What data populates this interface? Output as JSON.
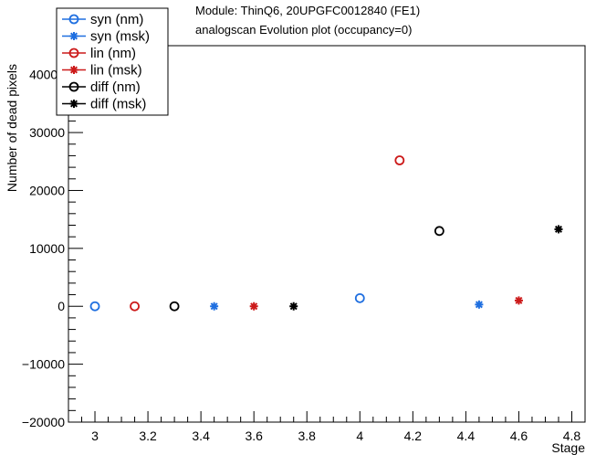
{
  "chart_data": {
    "type": "scatter",
    "title_lines": [
      "Module: ThinQ6, 20UPGFC0012840 (FE1)",
      "analogscan Evolution plot (occupancy=0)"
    ],
    "xlabel": "Stage",
    "ylabel": "Number of dead pixels",
    "xlim": [
      2.9,
      4.85
    ],
    "ylim": [
      -20000,
      45000
    ],
    "x_ticks": [
      3,
      3.2,
      3.4,
      3.6,
      3.8,
      4,
      4.2,
      4.4,
      4.6,
      4.8
    ],
    "x_tick_labels": [
      "3",
      "3.2",
      "3.4",
      "3.6",
      "3.8",
      "4",
      "4.2",
      "4.4",
      "4.6",
      "4.8"
    ],
    "y_ticks": [
      -20000,
      -10000,
      0,
      10000,
      20000,
      30000,
      40000
    ],
    "y_tick_labels": [
      "−20000",
      "−10000",
      "0",
      "10000",
      "20000",
      "30000",
      "40000"
    ],
    "grid": false,
    "legend_position": "top-left",
    "series": [
      {
        "name": "syn (nm)",
        "color": "#1f6fe0",
        "marker": "open-circle",
        "x": [
          3.0,
          4.0
        ],
        "y": [
          0,
          1400
        ]
      },
      {
        "name": "syn (msk)",
        "color": "#1f6fe0",
        "marker": "star",
        "x": [
          3.45,
          4.45
        ],
        "y": [
          0,
          300
        ]
      },
      {
        "name": "lin (nm)",
        "color": "#cc1a1a",
        "marker": "open-circle",
        "x": [
          3.15,
          4.15
        ],
        "y": [
          0,
          25200
        ]
      },
      {
        "name": "lin (msk)",
        "color": "#cc1a1a",
        "marker": "star",
        "x": [
          3.6,
          4.6
        ],
        "y": [
          0,
          1000
        ]
      },
      {
        "name": "diff (nm)",
        "color": "#000000",
        "marker": "open-circle",
        "x": [
          3.3,
          4.3
        ],
        "y": [
          0,
          13000
        ]
      },
      {
        "name": "diff (msk)",
        "color": "#000000",
        "marker": "star",
        "x": [
          3.75,
          4.75
        ],
        "y": [
          0,
          13300
        ]
      }
    ]
  }
}
